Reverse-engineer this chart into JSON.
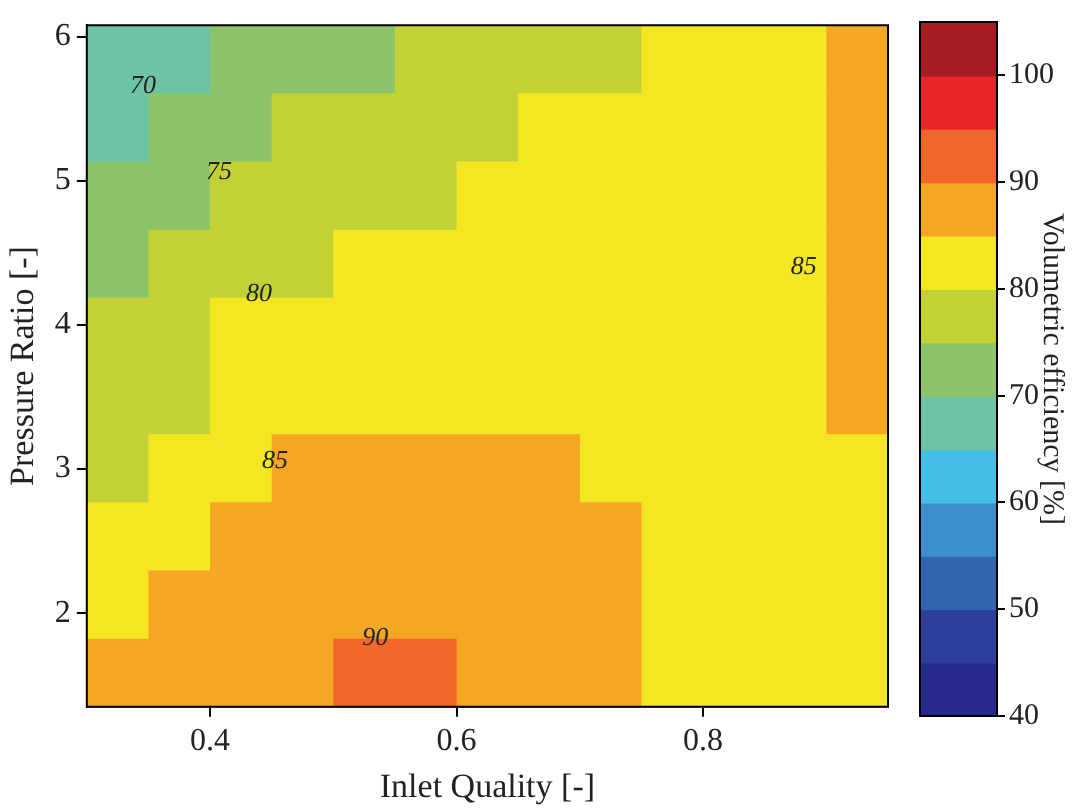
{
  "chart_data": {
    "type": "heatmap",
    "xlabel": "Inlet Quality [-]",
    "ylabel": "Pressure Ratio [-]",
    "clabel": "Volumetric efficiency [%]",
    "xlim": [
      0.3,
      0.95
    ],
    "xticks": [
      0.4,
      0.6,
      0.8
    ],
    "ylim": [
      1.35,
      6.08
    ],
    "yticks": [
      2,
      3,
      4,
      5,
      6
    ],
    "clim": [
      40,
      105
    ],
    "cticks": [
      40,
      50,
      60,
      70,
      80,
      90,
      100
    ],
    "cells": [
      [
        67.5,
        67.5,
        72.5,
        72.5,
        72.5,
        77.5,
        77.5,
        77.5,
        77.5,
        82.5,
        82.5,
        82.5,
        87.5
      ],
      [
        67.5,
        72.5,
        72.5,
        77.5,
        77.5,
        77.5,
        77.5,
        82.5,
        82.5,
        82.5,
        82.5,
        82.5,
        87.5
      ],
      [
        72.5,
        72.5,
        77.5,
        77.5,
        77.5,
        77.5,
        82.5,
        82.5,
        82.5,
        82.5,
        82.5,
        82.5,
        87.5
      ],
      [
        72.5,
        77.5,
        77.5,
        77.5,
        82.5,
        82.5,
        82.5,
        82.5,
        82.5,
        82.5,
        82.5,
        82.5,
        87.5
      ],
      [
        77.5,
        77.5,
        82.5,
        82.5,
        82.5,
        82.5,
        82.5,
        82.5,
        82.5,
        82.5,
        82.5,
        82.5,
        87.5
      ],
      [
        77.5,
        77.5,
        82.5,
        82.5,
        82.5,
        82.5,
        82.5,
        82.5,
        82.5,
        82.5,
        82.5,
        82.5,
        87.5
      ],
      [
        77.5,
        82.5,
        82.5,
        87.5,
        87.5,
        87.5,
        87.5,
        87.5,
        82.5,
        82.5,
        82.5,
        82.5,
        82.5
      ],
      [
        82.5,
        82.5,
        87.5,
        87.5,
        87.5,
        87.5,
        87.5,
        87.5,
        87.5,
        82.5,
        82.5,
        82.5,
        82.5
      ],
      [
        82.5,
        87.5,
        87.5,
        87.5,
        87.5,
        87.5,
        87.5,
        87.5,
        87.5,
        82.5,
        82.5,
        82.5,
        82.5
      ],
      [
        87.5,
        87.5,
        87.5,
        87.5,
        92.5,
        92.5,
        87.5,
        87.5,
        87.5,
        82.5,
        82.5,
        82.5,
        82.5
      ]
    ],
    "annotations": [
      "70",
      "75",
      "80",
      "85",
      "90",
      "85"
    ]
  }
}
